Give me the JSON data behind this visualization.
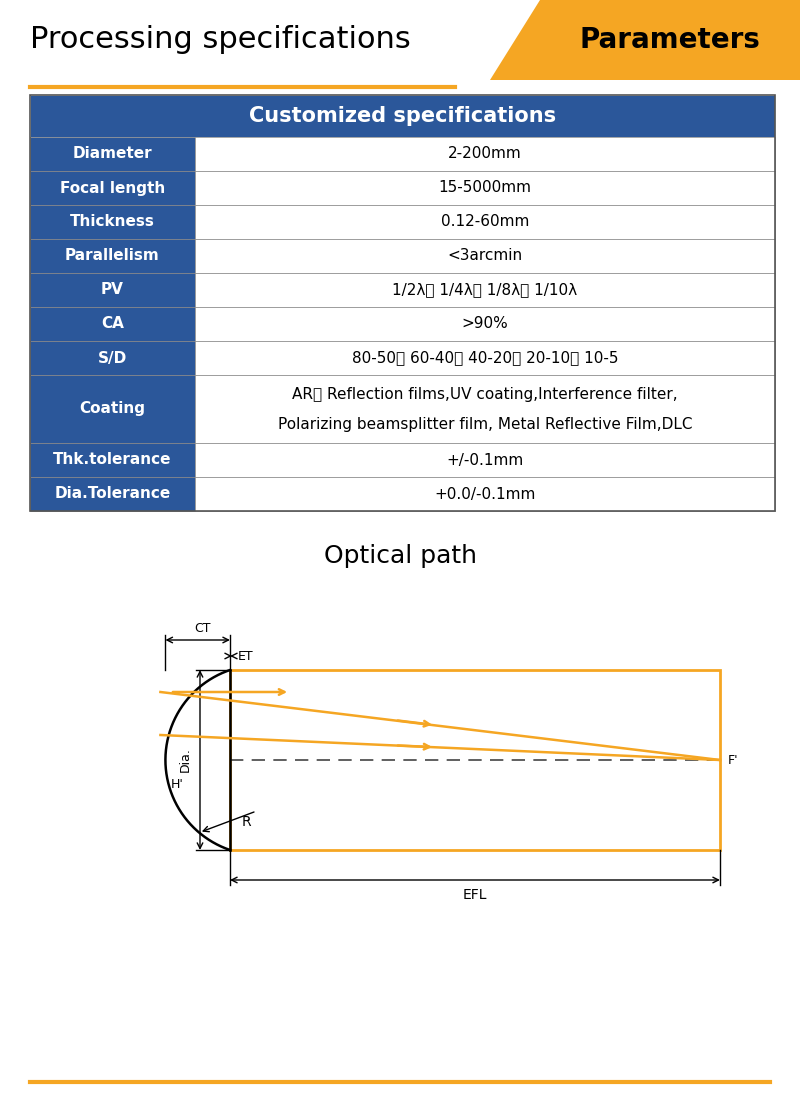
{
  "title_left": "Processing specifications",
  "title_right": "Parameters",
  "header_bg": "#2B579A",
  "header_text": "Customized specifications",
  "orange_color": "#F5A623",
  "table_rows": [
    [
      "Diameter",
      "2-200mm"
    ],
    [
      "Focal length",
      "15-5000mm"
    ],
    [
      "Thickness",
      "0.12-60mm"
    ],
    [
      "Parallelism",
      "<3arcmin"
    ],
    [
      "PV",
      "1/2λ、 1/4λ、 1/8λ、 1/10λ"
    ],
    [
      "CA",
      ">90%"
    ],
    [
      "S/D",
      "80-50、 60-40、 40-20、 20-10、 10-5"
    ],
    [
      "Coating",
      "AR、 Reflection films,UV coating,Interference filter,\nPolarizing beamsplitter film, Metal Reflective Film,DLC"
    ],
    [
      "Thk.tolerance",
      "+/-0.1mm"
    ],
    [
      "Dia.Tolerance",
      "+0.0/-0.1mm"
    ]
  ],
  "optical_path_title": "Optical path",
  "bottom_line_color": "#F5A623"
}
